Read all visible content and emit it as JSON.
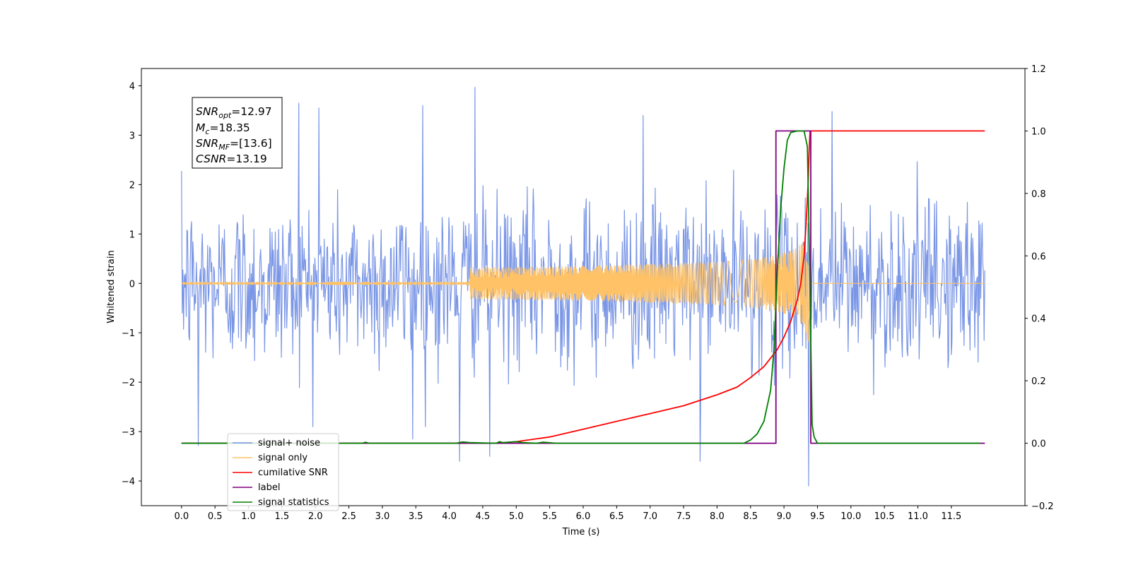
{
  "chart_data": {
    "type": "line",
    "xlabel": "Time (s)",
    "ylabel": "Whitened strain",
    "xlim": [
      -0.6,
      12.6
    ],
    "ylim": [
      -4.5,
      4.35
    ],
    "y2lim": [
      -0.2,
      1.2
    ],
    "xticks": [
      "0.0",
      "0.5",
      "1.0",
      "1.5",
      "2.0",
      "2.5",
      "3.0",
      "3.5",
      "4.0",
      "4.5",
      "5.0",
      "5.5",
      "6.0",
      "6.5",
      "7.0",
      "7.5",
      "8.0",
      "8.5",
      "9.0",
      "9.5",
      "10.0",
      "10.5",
      "11.0",
      "11.5"
    ],
    "yticks": [
      "4",
      "3",
      "2",
      "1",
      "0",
      "−1",
      "−2",
      "−3",
      "−4"
    ],
    "y2ticks": [
      "1.2",
      "1.0",
      "0.8",
      "0.6",
      "0.4",
      "0.2",
      "0.0",
      "−0.2"
    ],
    "annotation": [
      {
        "sym": "SNR",
        "sub": "opt",
        "value": "=12.97"
      },
      {
        "sym": "M",
        "sub": "c",
        "value": "=18.35"
      },
      {
        "sym": "SNR",
        "sub": "MF",
        "value": "=[13.6]"
      },
      {
        "sym": "CSNR",
        "sub": "",
        "value": "=13.19"
      }
    ],
    "legend": {
      "placement": "lower-left",
      "entries": [
        {
          "label": "signal+ noise",
          "color": "#7a96e6"
        },
        {
          "label": "signal only",
          "color": "#ffc266"
        },
        {
          "label": "cumilative SNR",
          "color": "#ff0000"
        },
        {
          "label": "label",
          "color": "#800080"
        },
        {
          "label": "signal statistics",
          "color": "#008000"
        }
      ]
    },
    "series": [
      {
        "name": "signal+ noise",
        "axis": "left",
        "color": "#7a96e6",
        "x_start": 0.0,
        "x_end": 12.0,
        "n_points": 1200,
        "noise_sigma": 0.82,
        "noise_max_abs": 4.0,
        "spikes": [
          [
            0.25,
            -3.28
          ],
          [
            1.75,
            3.65
          ],
          [
            2.05,
            3.55
          ],
          [
            3.45,
            -3.15
          ],
          [
            3.6,
            3.6
          ],
          [
            4.15,
            -3.6
          ],
          [
            4.38,
            3.97
          ],
          [
            4.6,
            -3.5
          ],
          [
            6.9,
            3.4
          ],
          [
            7.75,
            -3.6
          ],
          [
            9.37,
            -4.1
          ],
          [
            9.72,
            3.48
          ]
        ]
      },
      {
        "name": "signal only",
        "axis": "left",
        "color": "#ffc266",
        "x_start": 0.0,
        "x_end": 12.0,
        "chirp_merger_time": 9.38,
        "chirp_peak_amplitude": 1.6
      },
      {
        "name": "cumilative SNR",
        "axis": "right",
        "color": "#ff0000",
        "x": [
          0.0,
          4.7,
          5.0,
          5.5,
          6.0,
          6.5,
          7.0,
          7.5,
          8.0,
          8.3,
          8.5,
          8.7,
          8.9,
          9.0,
          9.1,
          9.2,
          9.25,
          9.3,
          9.33,
          9.36,
          9.38,
          9.39,
          9.4,
          9.5,
          10.0,
          11.0,
          12.0
        ],
        "values": [
          0.0,
          0.0,
          0.005,
          0.02,
          0.045,
          0.07,
          0.095,
          0.12,
          0.155,
          0.18,
          0.21,
          0.245,
          0.3,
          0.34,
          0.39,
          0.46,
          0.51,
          0.6,
          0.7,
          0.83,
          0.96,
          1.0,
          1.0,
          1.0,
          1.0,
          1.0,
          1.0
        ]
      },
      {
        "name": "label",
        "axis": "right",
        "color": "#800080",
        "x": [
          0.0,
          8.88,
          8.88,
          9.4,
          9.4,
          12.0
        ],
        "values": [
          0.0,
          0.0,
          1.0,
          1.0,
          0.0,
          0.0
        ]
      },
      {
        "name": "signal statistics",
        "axis": "right",
        "color": "#008000",
        "x": [
          0.0,
          2.7,
          2.75,
          2.8,
          4.1,
          4.2,
          4.3,
          4.7,
          4.75,
          4.8,
          5.0,
          5.1,
          5.3,
          5.4,
          5.6,
          8.4,
          8.5,
          8.6,
          8.7,
          8.8,
          8.85,
          8.9,
          8.95,
          9.0,
          9.05,
          9.1,
          9.2,
          9.3,
          9.35,
          9.38,
          9.42,
          9.45,
          9.5,
          11.93
        ],
        "values": [
          0.0,
          0.0,
          0.003,
          0.0,
          0.0,
          0.004,
          0.002,
          0.0,
          0.005,
          0.002,
          0.005,
          0.002,
          0.0,
          0.003,
          0.0,
          0.0,
          0.01,
          0.03,
          0.07,
          0.17,
          0.3,
          0.55,
          0.75,
          0.88,
          0.97,
          0.995,
          1.0,
          1.0,
          0.95,
          0.6,
          0.06,
          0.02,
          0.0,
          0.0
        ]
      }
    ]
  }
}
